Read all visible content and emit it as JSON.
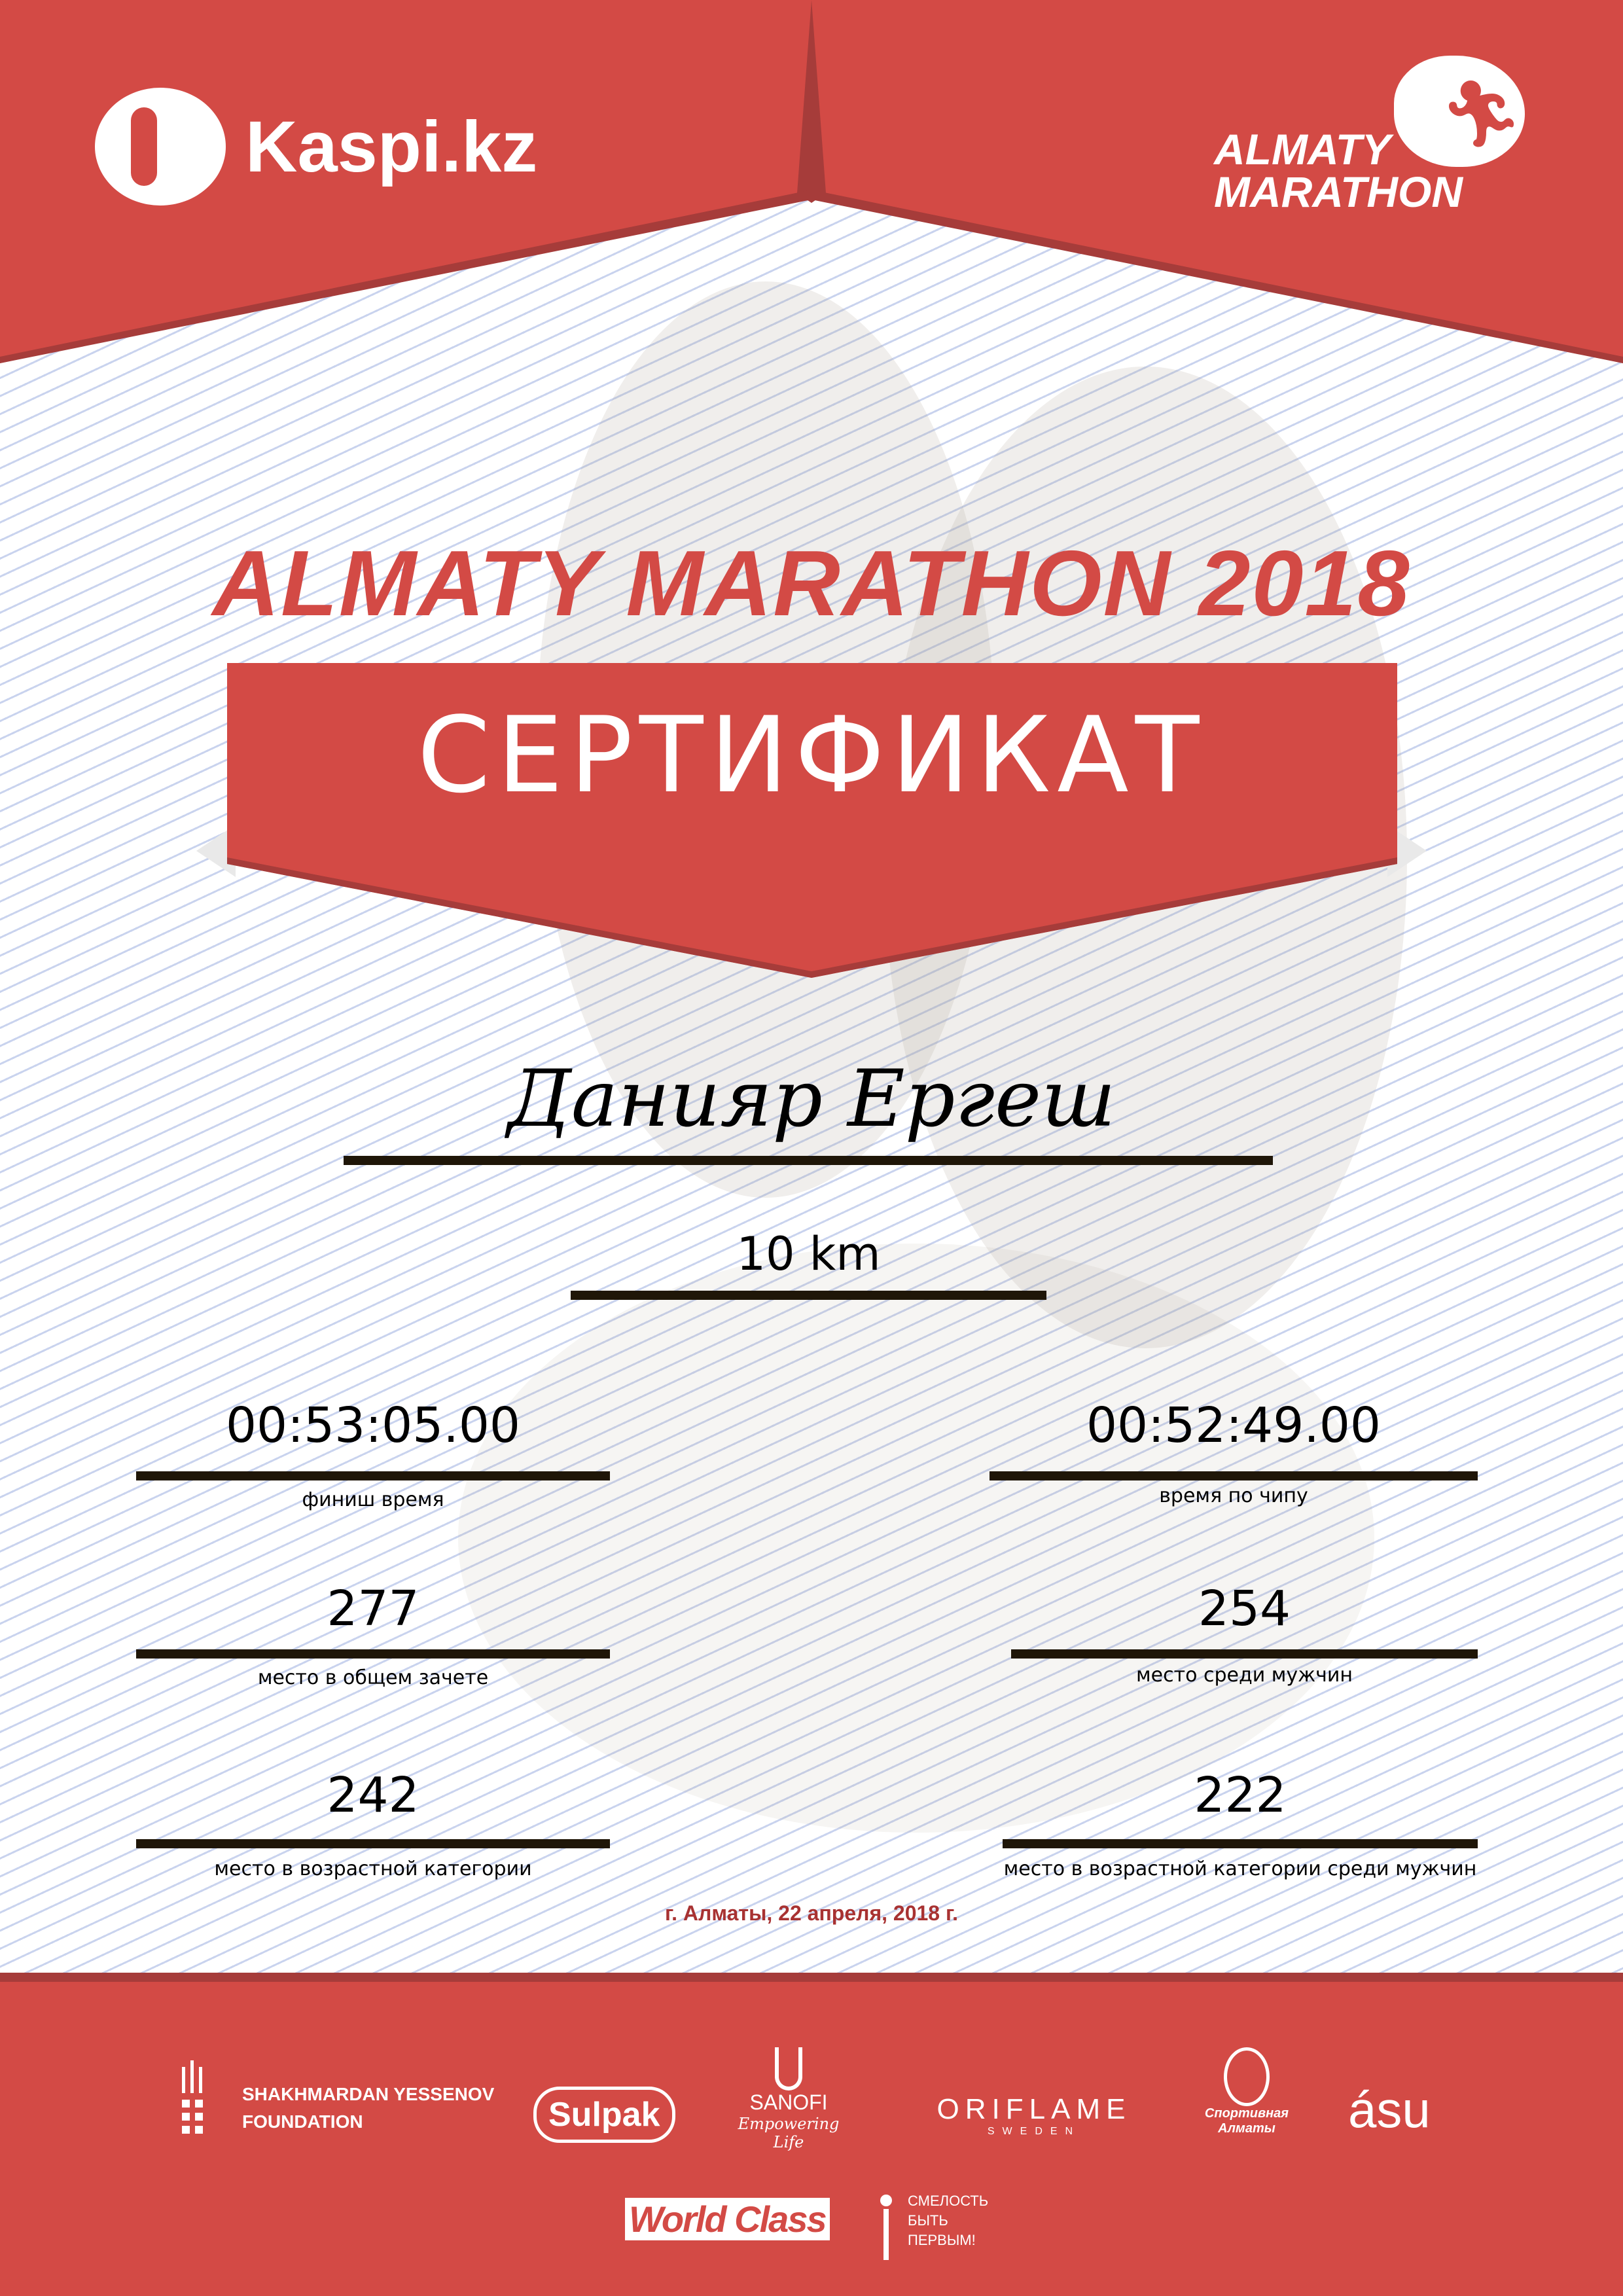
{
  "header": {
    "kaspi_logo": "Kaspi.kz",
    "marathon_logo_line1": "ALMATY",
    "marathon_logo_line2": "MARATHON"
  },
  "title": "ALMATY MARATHON 2018",
  "certificate_label": "СЕРТИФИКАТ",
  "participant": {
    "name": "Данияр Ергеш",
    "distance": "10 km"
  },
  "results": {
    "finish_time": {
      "value": "00:53:05.00",
      "label": "финиш время"
    },
    "chip_time": {
      "value": "00:52:49.00",
      "label": "время по чипу"
    },
    "overall_place": {
      "value": "277",
      "label": "место в общем зачете"
    },
    "male_place": {
      "value": "254",
      "label": "место среди мужчин"
    },
    "age_place": {
      "value": "242",
      "label": "место в возрастной категории"
    },
    "age_male_place": {
      "value": "222",
      "label": "место в возрастной категории среди мужчин"
    }
  },
  "date_line": "г. Алматы, 22 апреля, 2018 г.",
  "sponsors": {
    "yessenov_line1": "SHAKHMARDAN YESSENOV",
    "yessenov_line2": "FOUNDATION",
    "sulpak": "Sulpak",
    "sanofi": "SANOFI",
    "sanofi_tagline": "Empowering Life",
    "oriflame": "ORIFLAME",
    "oriflame_sub": "SWEDEN",
    "sport_almaty": "Спортивная Алматы",
    "asu": "ásu",
    "worldclass": "World Class",
    "smelost_line1": "СМЕЛОСТЬ",
    "smelost_line2": "БЫТЬ",
    "smelost_line3": "ПЕРВЫМ!"
  },
  "colors": {
    "brand_red": "#d34a45",
    "dark_red": "#a63c3a",
    "date_red": "#a83232",
    "line": "#1f1608"
  }
}
